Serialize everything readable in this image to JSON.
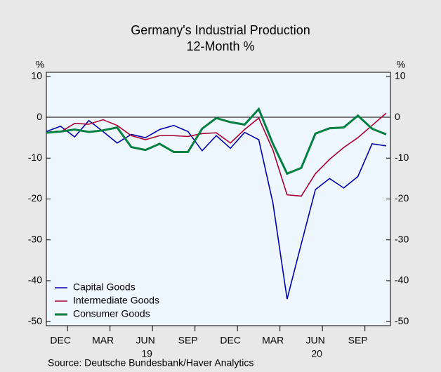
{
  "chart_data": {
    "type": "line",
    "title": "Germany's Industrial Production",
    "subtitle": "12-Month %",
    "y_label": "%",
    "y2_label": "%",
    "source": "Source:  Deutsche Bundesbank/Haver Analytics",
    "categories": [
      null,
      "DEC",
      null,
      null,
      "MAR",
      null,
      null,
      "JUN",
      null,
      null,
      "SEP",
      null,
      null,
      "DEC",
      null,
      null,
      "MAR",
      null,
      null,
      "JUN",
      null,
      null,
      "SEP",
      null,
      null
    ],
    "years": [
      null,
      null,
      null,
      null,
      null,
      null,
      null,
      "19",
      null,
      null,
      null,
      null,
      null,
      null,
      null,
      null,
      null,
      null,
      null,
      "20",
      null,
      null,
      null,
      null,
      null
    ],
    "series": [
      {
        "name": "Capital Goods",
        "color": "#0000a8",
        "values": [
          -3.5,
          -2.2,
          -4.8,
          -0.8,
          -3.5,
          -6.3,
          -4.2,
          -5,
          -3,
          -2,
          -3.5,
          -8.2,
          -4.5,
          -7.6,
          -3.7,
          -5.5,
          -21,
          -44.5,
          -31,
          -17.7,
          -15,
          -17.3,
          -14.5,
          -6.5,
          -7
        ]
      },
      {
        "name": "Intermediate Goods",
        "color": "#a80030",
        "values": [
          -3.8,
          -3.6,
          -1.5,
          -1.7,
          -0.6,
          -2,
          -4.5,
          -5.5,
          -4.5,
          -4.5,
          -4.7,
          -4,
          -3.8,
          -6.3,
          -3,
          -0.2,
          -8,
          -19,
          -19.3,
          -13.8,
          -10.3,
          -7.4,
          -5,
          -2,
          1
        ]
      },
      {
        "name": "Consumer Goods",
        "color": "#008040",
        "values": [
          -3.8,
          -3.5,
          -3,
          -3.6,
          -3.2,
          -2.5,
          -7.3,
          -8,
          -6.5,
          -8.5,
          -8.5,
          -2.8,
          -0.2,
          -1.2,
          -1.8,
          2,
          -6.5,
          -13.8,
          -12.4,
          -4,
          -2.7,
          -2.5,
          0.4,
          -2.8,
          -4.2
        ]
      }
    ],
    "ylim": [
      -51,
      11
    ],
    "yticks": [
      -50,
      -40,
      -30,
      -20,
      -10,
      0,
      10
    ],
    "y2lim": [
      -51,
      11
    ],
    "y2ticks": [
      -50,
      -40,
      -30,
      -20,
      -10,
      0,
      10
    ],
    "legend": "lower left"
  }
}
